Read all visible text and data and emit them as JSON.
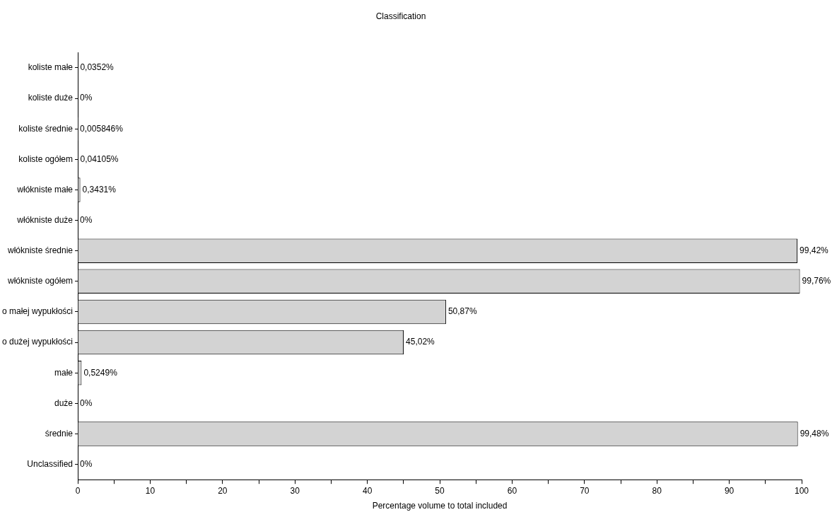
{
  "chart_data": {
    "type": "bar",
    "orientation": "horizontal",
    "title": "Classification",
    "xlabel": "Percentage volume to total included",
    "categories": [
      "koliste małe",
      "koliste duże",
      "koliste średnie",
      "koliste ogółem",
      "włókniste małe",
      "włókniste duże",
      "włókniste średnie",
      "włókniste ogółem",
      "o małej wypukłości",
      "o dużej wypukłości",
      "małe",
      "duże",
      "średnie",
      "Unclassified"
    ],
    "values": [
      0.0352,
      0,
      0.005846,
      0.04105,
      0.3431,
      0,
      99.42,
      99.76,
      50.87,
      45.02,
      0.5249,
      0,
      99.48,
      0
    ],
    "value_labels": [
      "0,0352%",
      "0%",
      "0,005846%",
      "0,04105%",
      "0,3431%",
      "0%",
      "99,42%",
      "99,76%",
      "50,87%",
      "45,02%",
      "0,5249%",
      "0%",
      "99,48%",
      "0%"
    ],
    "color": "#d3d3d3",
    "xlim": [
      0,
      100
    ],
    "xticks": [
      0,
      {
        "value": 5,
        "label": null
      },
      10,
      {
        "value": 15,
        "label": null
      },
      20,
      {
        "value": 25,
        "label": null
      },
      30,
      {
        "value": 35,
        "label": null
      },
      40,
      {
        "value": 45,
        "label": null
      },
      50,
      {
        "value": 55,
        "label": null
      },
      60,
      {
        "value": 65,
        "label": null
      },
      70,
      {
        "value": 75,
        "label": null
      },
      80,
      {
        "value": 85,
        "label": null
      },
      90,
      {
        "value": 95,
        "label": null
      },
      100
    ],
    "grid": false,
    "legend": false
  }
}
